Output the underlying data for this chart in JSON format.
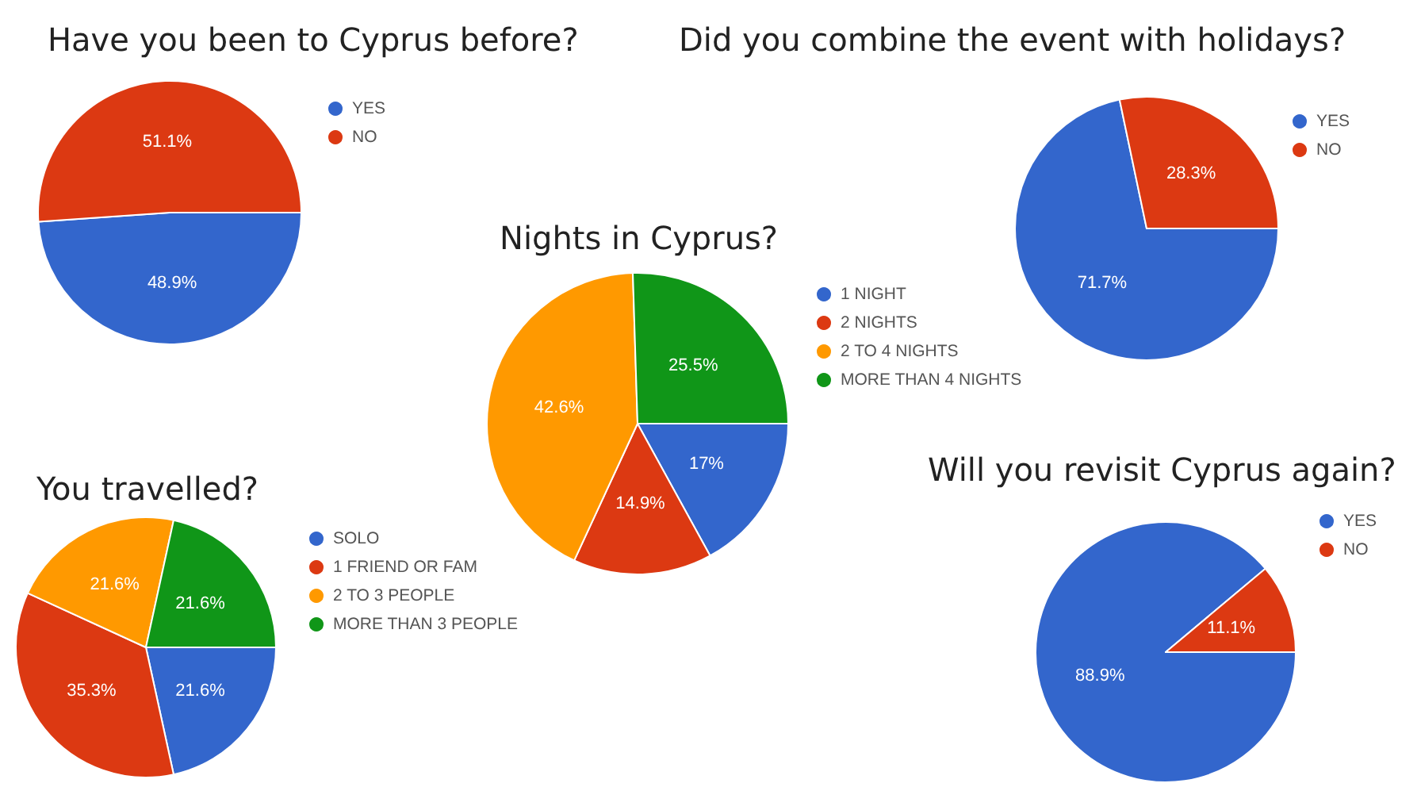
{
  "chart_data": [
    {
      "type": "pie",
      "title": "Have you been to Cyprus before?",
      "categories": [
        "YES",
        "NO"
      ],
      "values": [
        48.9,
        51.1
      ],
      "colors": [
        "#3366cc",
        "#dc3912"
      ],
      "value_labels": [
        "48.9%",
        "51.1%"
      ],
      "legend": "right"
    },
    {
      "type": "pie",
      "title": "Did you combine the event with holidays?",
      "categories": [
        "YES",
        "NO"
      ],
      "values": [
        71.7,
        28.3
      ],
      "colors": [
        "#3366cc",
        "#dc3912"
      ],
      "value_labels": [
        "71.7%",
        "28.3%"
      ],
      "legend": "right"
    },
    {
      "type": "pie",
      "title": "Nights in Cyprus?",
      "categories": [
        "1 NIGHT",
        "2 NIGHTS",
        "2 TO 4 NIGHTS",
        "MORE THAN 4 NIGHTS"
      ],
      "values": [
        17,
        14.9,
        42.6,
        25.5
      ],
      "colors": [
        "#3366cc",
        "#dc3912",
        "#ff9900",
        "#109618"
      ],
      "value_labels": [
        "17%",
        "14.9%",
        "42.6%",
        "25.5%"
      ],
      "legend": "right"
    },
    {
      "type": "pie",
      "title": "You travelled?",
      "categories": [
        "SOLO",
        "1 FRIEND OR FAM",
        "2 TO 3 PEOPLE",
        "MORE THAN 3 PEOPLE"
      ],
      "values": [
        21.6,
        35.3,
        21.6,
        21.6
      ],
      "colors": [
        "#3366cc",
        "#dc3912",
        "#ff9900",
        "#109618"
      ],
      "value_labels": [
        "21.6%",
        "35.3%",
        "21.6%",
        "21.6%"
      ],
      "legend": "right"
    },
    {
      "type": "pie",
      "title": "Will you revisit Cyprus again?",
      "categories": [
        "YES",
        "NO"
      ],
      "values": [
        88.9,
        11.1
      ],
      "colors": [
        "#3366cc",
        "#dc3912"
      ],
      "value_labels": [
        "88.9%",
        "11.1%"
      ],
      "legend": "right"
    }
  ]
}
